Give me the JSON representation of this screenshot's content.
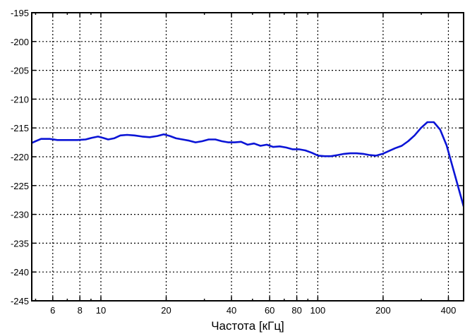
{
  "chart_data": {
    "type": "line",
    "xlabel": "Частота [кГц]",
    "ylabel": "",
    "title": "",
    "x_scale": "log",
    "xlim": [
      4.8,
      470
    ],
    "ylim": [
      -245,
      -195
    ],
    "grid": true,
    "x_ticks": [
      6,
      8,
      10,
      20,
      40,
      60,
      80,
      100,
      200,
      400
    ],
    "x_tick_labels": [
      "6",
      "8",
      "10",
      "20",
      "40",
      "60",
      "80",
      "100",
      "200",
      "400"
    ],
    "y_ticks": [
      -195,
      -200,
      -205,
      -210,
      -215,
      -220,
      -225,
      -230,
      -235,
      -240,
      -245
    ],
    "y_tick_labels": [
      "-195",
      "-200",
      "-205",
      "-210",
      "-215",
      "-220",
      "-225",
      "-230",
      "-235",
      "-240",
      "-245"
    ],
    "series": [
      {
        "color": "#0a14d6",
        "x": [
          4.8,
          5.0,
          5.3,
          5.8,
          6.3,
          7.0,
          7.8,
          8.5,
          9.1,
          9.7,
          10.2,
          10.8,
          11.5,
          12.3,
          13.2,
          14.3,
          15.5,
          16.8,
          18.2,
          19.5,
          20.8,
          22.2,
          23.8,
          25.5,
          27.3,
          29.3,
          31.4,
          33.7,
          36.1,
          38.7,
          41.4,
          44.3,
          47.5,
          50.8,
          54.4,
          58.2,
          62.3,
          66.7,
          71.4,
          76.4,
          81.8,
          87.6,
          93.8,
          100.4,
          107.5,
          115.1,
          123.3,
          132.0,
          141.3,
          151.3,
          162.0,
          173.4,
          185.6,
          198.7,
          212.7,
          227.6,
          243.6,
          260.8,
          279.2,
          298.9,
          320.0,
          342.5,
          366.6,
          392.4,
          420.1,
          449.7,
          470.0
        ],
        "y": [
          -217.6,
          -217.3,
          -216.9,
          -216.9,
          -217.1,
          -217.1,
          -217.1,
          -217.0,
          -216.7,
          -216.5,
          -216.7,
          -217.0,
          -216.8,
          -216.3,
          -216.2,
          -216.3,
          -216.5,
          -216.6,
          -216.4,
          -216.1,
          -216.4,
          -216.8,
          -217.0,
          -217.2,
          -217.5,
          -217.3,
          -217.0,
          -217.0,
          -217.3,
          -217.5,
          -217.5,
          -217.4,
          -217.9,
          -217.7,
          -218.1,
          -217.9,
          -218.3,
          -218.2,
          -218.4,
          -218.7,
          -218.7,
          -218.9,
          -219.3,
          -219.8,
          -219.9,
          -219.9,
          -219.7,
          -219.5,
          -219.4,
          -219.4,
          -219.5,
          -219.7,
          -219.8,
          -219.5,
          -219.0,
          -218.5,
          -218.1,
          -217.3,
          -216.3,
          -215.0,
          -214.0,
          -214.0,
          -215.3,
          -218.0,
          -222.0,
          -226.0,
          -228.6
        ]
      }
    ]
  }
}
